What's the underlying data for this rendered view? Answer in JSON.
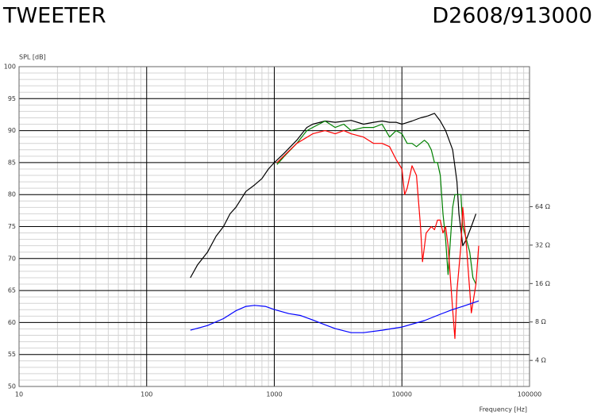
{
  "chart_data": {
    "type": "line",
    "title": "TWEETER",
    "subtitle": "D2608/913000",
    "y_label": "SPL [dB]",
    "x_label": "Frequency [Hz]",
    "xscale": "log",
    "y2scale": "log",
    "grid": true,
    "minor_grid": true,
    "xlim": [
      10,
      100000
    ],
    "xticks": [
      10,
      100,
      1000,
      10000,
      100000
    ],
    "ylim": [
      50,
      100
    ],
    "yticks": [
      50,
      55,
      60,
      65,
      70,
      75,
      80,
      85,
      90,
      95,
      100
    ],
    "y2lim": [
      2.5,
      800
    ],
    "y2ticks": [
      {
        "value": 4,
        "label": "4 Ω"
      },
      {
        "value": 8,
        "label": "8 Ω"
      },
      {
        "value": 16,
        "label": "16 Ω"
      },
      {
        "value": 32,
        "label": "32 Ω"
      },
      {
        "value": 64,
        "label": "64 Ω"
      }
    ],
    "series": [
      {
        "color": "#000000",
        "x": [
          220,
          250,
          300,
          350,
          400,
          450,
          500,
          600,
          700,
          800,
          900,
          1000,
          1200,
          1500,
          1800,
          2000,
          2500,
          3000,
          4000,
          5000,
          6000,
          7000,
          8000,
          9000,
          10000,
          12000,
          14000,
          16000,
          18000,
          20000,
          22000,
          25000,
          27000,
          28000,
          30000,
          32000,
          35000,
          38000
        ],
        "values": [
          67,
          69,
          71,
          73.5,
          75,
          77,
          78,
          80.5,
          81.5,
          82.5,
          84,
          85,
          86.5,
          88.5,
          90.5,
          91,
          91.5,
          91.3,
          91.6,
          91,
          91.3,
          91.5,
          91.3,
          91.3,
          91,
          91.5,
          92,
          92.3,
          92.7,
          91.5,
          90,
          87,
          82,
          77,
          72,
          73,
          75,
          77
        ]
      },
      {
        "color": "#008000",
        "x": [
          1050,
          1200,
          1500,
          1800,
          2000,
          2500,
          3000,
          3500,
          4000,
          5000,
          6000,
          7000,
          8000,
          9000,
          10000,
          11000,
          12000,
          13000,
          15000,
          16000,
          17000,
          18000,
          19000,
          20000,
          21000,
          22000,
          23000,
          24000,
          25000,
          26000,
          28000,
          29000,
          30000,
          32000,
          34000,
          36000,
          38000
        ],
        "values": [
          84.7,
          86,
          88,
          90,
          90.5,
          91.5,
          90.5,
          91,
          90,
          90.5,
          90.5,
          91,
          89,
          90,
          89.5,
          88,
          88,
          87.5,
          88.5,
          88,
          87,
          85,
          85,
          83,
          77,
          73,
          67.5,
          73,
          78,
          80,
          80,
          80,
          75,
          73,
          71,
          67,
          66
        ]
      },
      {
        "color": "#ff0000",
        "x": [
          1050,
          1500,
          2000,
          2500,
          3000,
          3500,
          4000,
          5000,
          6000,
          7000,
          8000,
          9000,
          10000,
          10500,
          11000,
          12000,
          13000,
          14000,
          14500,
          15500,
          17000,
          18000,
          19000,
          20000,
          21000,
          22000,
          23000,
          25000,
          26000,
          27000,
          29000,
          30000,
          32000,
          34000,
          35000,
          38000,
          40000
        ],
        "values": [
          85,
          88,
          89.5,
          90,
          89.5,
          90,
          89.5,
          89,
          88,
          88,
          87.5,
          85.5,
          84,
          80,
          81,
          84.5,
          83,
          75,
          69.5,
          74,
          75,
          74.5,
          76,
          76,
          74,
          75,
          72,
          62,
          57.5,
          65,
          72,
          78,
          72,
          65,
          61.5,
          66,
          72
        ]
      },
      {
        "color": "#0000ff",
        "axis": "y2",
        "x": [
          220,
          300,
          400,
          500,
          600,
          700,
          850,
          1000,
          1300,
          1600,
          2000,
          2500,
          3000,
          4000,
          5000,
          7000,
          10000,
          15000,
          20000,
          25000,
          30000,
          40000
        ],
        "values": [
          6.9,
          7.5,
          8.5,
          9.8,
          10.6,
          10.8,
          10.6,
          10,
          9.3,
          9,
          8.3,
          7.6,
          7.1,
          6.6,
          6.6,
          6.9,
          7.3,
          8.2,
          9.2,
          10,
          10.6,
          11.7
        ]
      }
    ]
  }
}
